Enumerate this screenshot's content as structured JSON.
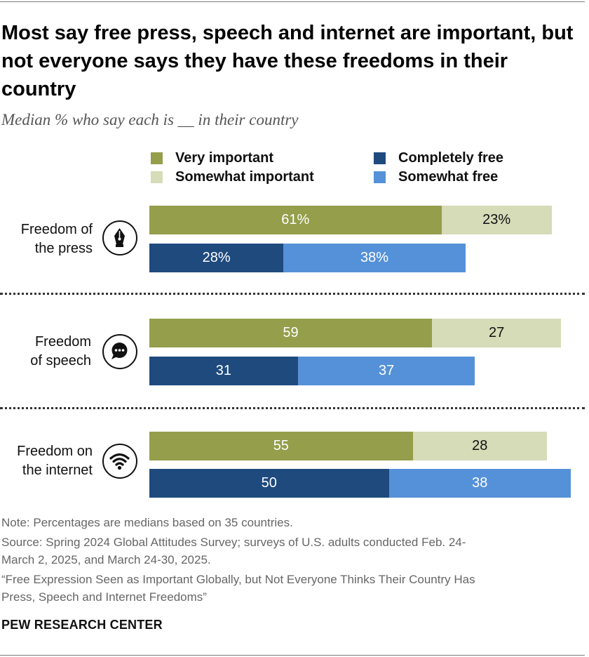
{
  "title": "Most say free press, speech and internet are important, but not everyone says they have these freedoms in their country",
  "subtitle": "Median % who say each is __ in their country",
  "legend": {
    "very_important": {
      "label": "Very important",
      "color": "#949e4b"
    },
    "somewhat_important": {
      "label": "Somewhat important",
      "color": "#d6dbb8"
    },
    "completely_free": {
      "label": "Completely free",
      "color": "#1f4a7e"
    },
    "somewhat_free": {
      "label": "Somewhat free",
      "color": "#5591d8"
    }
  },
  "chart_data": {
    "type": "bar",
    "orientation": "horizontal",
    "stacked": true,
    "title": "Most say free press, speech and internet are important, but not everyone says they have these freedoms in their country",
    "subtitle": "Median % who say each is __ in their country",
    "xlim": [
      0,
      100
    ],
    "categories": [
      "Freedom of the press",
      "Freedom of speech",
      "Freedom on the internet"
    ],
    "groups": [
      {
        "category": "Freedom of the press",
        "label_lines": [
          "Freedom of",
          "the press"
        ],
        "icon": "fountain-pen-icon",
        "importance": {
          "very": 61,
          "very_label": "61%",
          "somewhat": 23,
          "somewhat_label": "23%"
        },
        "freedom": {
          "completely": 28,
          "completely_label": "28%",
          "somewhat": 38,
          "somewhat_label": "38%"
        }
      },
      {
        "category": "Freedom of speech",
        "label_lines": [
          "Freedom",
          "of speech"
        ],
        "icon": "speech-bubble-icon",
        "importance": {
          "very": 59,
          "very_label": "59",
          "somewhat": 27,
          "somewhat_label": "27"
        },
        "freedom": {
          "completely": 31,
          "completely_label": "31",
          "somewhat": 37,
          "somewhat_label": "37"
        }
      },
      {
        "category": "Freedom on the internet",
        "label_lines": [
          "Freedom on",
          "the internet"
        ],
        "icon": "wifi-icon",
        "importance": {
          "very": 55,
          "very_label": "55",
          "somewhat": 28,
          "somewhat_label": "28"
        },
        "freedom": {
          "completely": 50,
          "completely_label": "50",
          "somewhat": 38,
          "somewhat_label": "38"
        }
      }
    ]
  },
  "notes": {
    "note": "Note: Percentages are medians based on 35 countries.",
    "source_line1": "Source: Spring 2024 Global Attitudes Survey; surveys of U.S. adults conducted Feb. 24-",
    "source_line2": "March 2, 2025, and March 24-30, 2025.",
    "report_line1": "“Free Expression Seen as Important Globally, but Not Everyone Thinks Their Country Has",
    "report_line2": "Press, Speech and Internet Freedoms”"
  },
  "brand": "PEW RESEARCH CENTER"
}
